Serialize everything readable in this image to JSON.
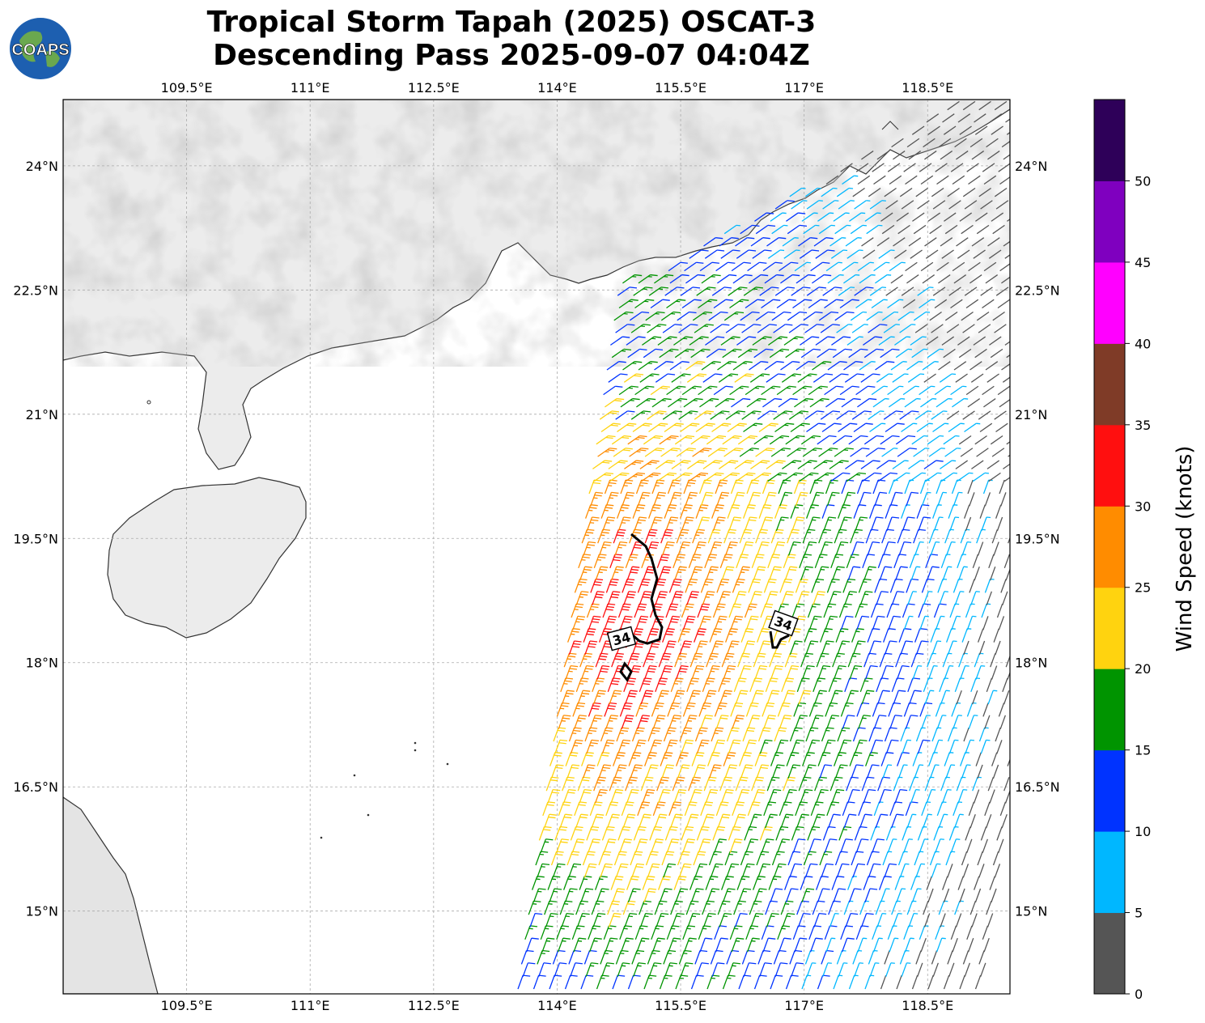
{
  "title": {
    "line1": "Tropical Storm Tapah (2025) OSCAT-3",
    "line2": "Descending Pass 2025-09-07 04:04Z"
  },
  "logo": {
    "text": "COAPS",
    "icon": "globe-icon"
  },
  "map": {
    "lon_range": [
      108.0,
      119.5
    ],
    "lat_range": [
      14.0,
      24.8
    ],
    "lon_ticks": [
      "109.5°E",
      "111°E",
      "112.5°E",
      "114°E",
      "115.5°E",
      "117°E",
      "118.5°E"
    ],
    "lat_ticks": [
      "24°N",
      "22.5°N",
      "21°N",
      "19.5°N",
      "18°N",
      "16.5°N",
      "15°N"
    ],
    "gridlines": true,
    "contour_label": "34",
    "land_color": "#e8e8e8",
    "coast_color": "#333333"
  },
  "colorbar": {
    "label": "Wind Speed (knots)",
    "ticks": [
      "0",
      "5",
      "10",
      "15",
      "20",
      "25",
      "30",
      "35",
      "40",
      "45",
      "50"
    ],
    "colors": [
      "#555555",
      "#00b7ff",
      "#0033ff",
      "#009400",
      "#ffd30f",
      "#ff8c00",
      "#ff0f0f",
      "#7f3b27",
      "#ff00ff",
      "#7f00bf",
      "#2e0059"
    ]
  }
}
